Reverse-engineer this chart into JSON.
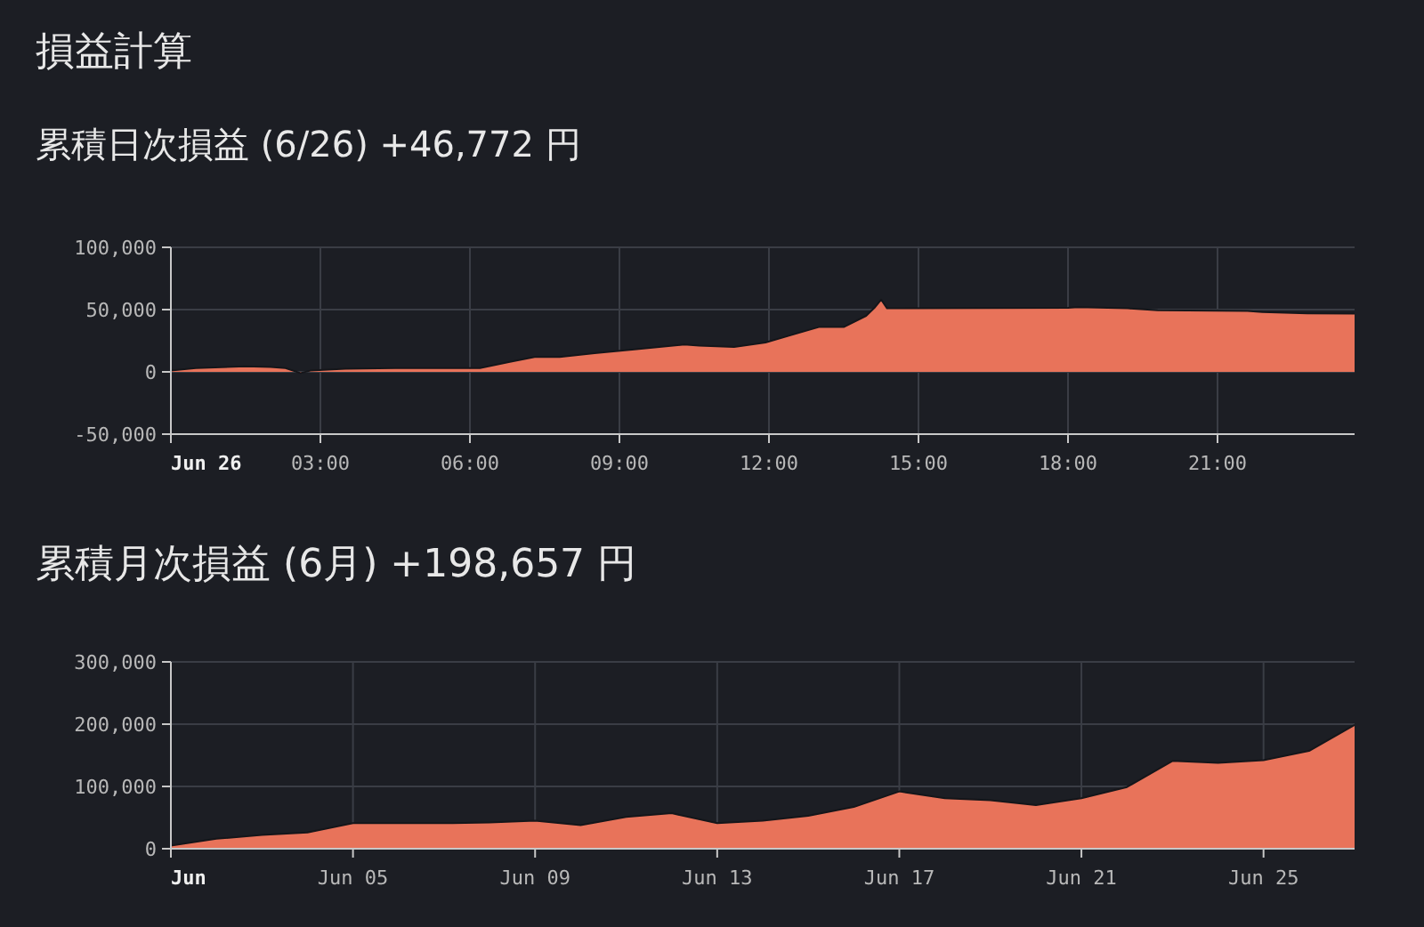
{
  "chart_data": [
    {
      "type": "area",
      "title": "損益計算",
      "subtitle": "累積日次損益 (6/26) +46,772 円",
      "color": "#e8735a",
      "grid": true,
      "x": [
        0,
        0.5,
        1.5,
        2.0,
        2.3,
        2.6,
        2.8,
        3.5,
        4.5,
        5.5,
        6.2,
        6.8,
        7.3,
        7.8,
        8.5,
        9.3,
        9.8,
        10.3,
        10.6,
        11.3,
        11.93,
        12.4,
        13.0,
        13.5,
        13.95,
        14.13,
        14.25,
        14.37,
        18.0,
        18.2,
        19.2,
        19.8,
        21.6,
        21.9,
        22.8,
        23.75
      ],
      "values": [
        1000,
        3000,
        4500,
        4000,
        3000,
        -1000,
        1000,
        2500,
        3000,
        3000,
        3000,
        8000,
        12000,
        12000,
        15000,
        18000,
        20000,
        22000,
        21000,
        20000,
        23600,
        29000,
        36000,
        36000,
        45000,
        52000,
        58000,
        51000,
        51500,
        52000,
        51000,
        49500,
        49000,
        48000,
        47000,
        46772
      ],
      "xlim": [
        0,
        23.75
      ],
      "xticks": [
        {
          "value": 0,
          "label": "Jun 26"
        },
        {
          "value": 3,
          "label": "03:00"
        },
        {
          "value": 6,
          "label": "06:00"
        },
        {
          "value": 9,
          "label": "09:00"
        },
        {
          "value": 12,
          "label": "12:00"
        },
        {
          "value": 15,
          "label": "15:00"
        },
        {
          "value": 18,
          "label": "18:00"
        },
        {
          "value": 21,
          "label": "21:00"
        }
      ],
      "ylim": [
        -50000,
        100000
      ],
      "yticks": [
        {
          "value": -50000,
          "label": "-50,000"
        },
        {
          "value": 0,
          "label": "0"
        },
        {
          "value": 50000,
          "label": "50,000"
        },
        {
          "value": 100000,
          "label": "100,000"
        }
      ]
    },
    {
      "type": "area",
      "title": "累積月次損益 (6月) +198,657 円",
      "color": "#e8735a",
      "grid": true,
      "x": [
        "--06-01",
        "--06-02",
        "--06-03",
        "--06-04",
        "--06-05",
        "--06-06",
        "--06-07",
        "--06-08",
        "--06-09",
        "--06-10",
        "--06-11",
        "--06-12",
        "--06-13",
        "--06-14",
        "--06-15",
        "--06-16",
        "--06-17",
        "--06-18",
        "--06-19",
        "--06-20",
        "--06-21",
        "--06-22",
        "--06-23",
        "--06-24",
        "--06-25",
        "--06-26",
        "--06-27"
      ],
      "values": [
        5000,
        16000,
        22000,
        26000,
        41000,
        41000,
        41000,
        42000,
        45000,
        38000,
        51000,
        57000,
        41000,
        45000,
        53000,
        67000,
        92000,
        81000,
        78000,
        70000,
        81000,
        99000,
        141000,
        138000,
        142000,
        157000,
        198657
      ],
      "xlim": [
        "--06-01",
        "--06-27"
      ],
      "xticks": [
        {
          "value": "--06-01",
          "label": "Jun"
        },
        {
          "value": "--06-05",
          "label": "Jun 05"
        },
        {
          "value": "--06-09",
          "label": "Jun 09"
        },
        {
          "value": "--06-13",
          "label": "Jun 13"
        },
        {
          "value": "--06-17",
          "label": "Jun 17"
        },
        {
          "value": "--06-21",
          "label": "Jun 21"
        },
        {
          "value": "--06-25",
          "label": "Jun 25"
        }
      ],
      "ylim": [
        0,
        300000
      ],
      "yticks": [
        {
          "value": 0,
          "label": "0"
        },
        {
          "value": 100000,
          "label": "100,000"
        },
        {
          "value": 200000,
          "label": "200,000"
        },
        {
          "value": 300000,
          "label": "300,000"
        }
      ]
    }
  ]
}
